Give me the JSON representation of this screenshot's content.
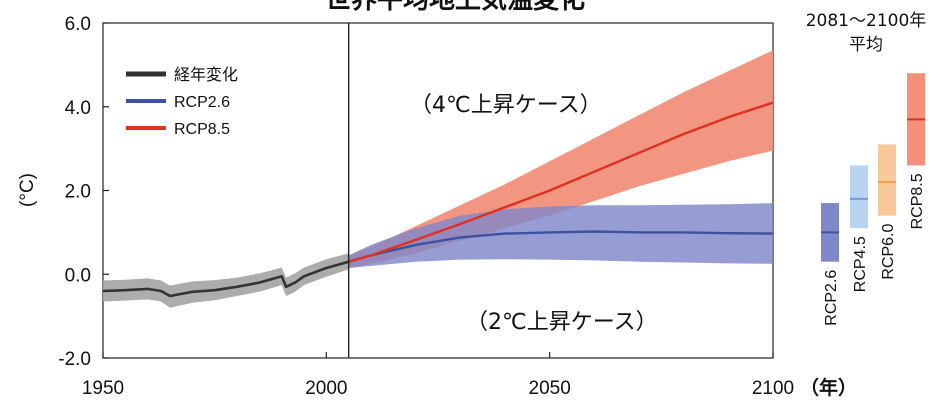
{
  "chart_data": {
    "type": "line",
    "title": "世界平均地上気温変化",
    "ylabel": "(°C)",
    "xunit": "（年）",
    "xlim": [
      1950,
      2100
    ],
    "ylim": [
      -2.0,
      6.0
    ],
    "x_ticks": [
      "1950",
      "2000",
      "2050",
      "2100"
    ],
    "y_ticks": [
      "6.0",
      "4.0",
      "2.0",
      "0.0",
      "-2.0"
    ],
    "split_year": 2005,
    "annotations": {
      "high": "（4℃上昇ケース）",
      "low": "（2℃上昇ケース）"
    },
    "colors": {
      "historical": "#333333",
      "historical_band": "#a8a8a8",
      "rcp26": "#3b52a0",
      "rcp26_band": "#8088c8",
      "rcp85": "#e03020",
      "rcp85_band": "#f2907a",
      "rcp45": "#6d9fd8",
      "rcp45_band": "#b8d4f0",
      "rcp60": "#f0a050",
      "rcp60_band": "#f8c898"
    },
    "series": [
      {
        "name": "経年変化",
        "key": "historical",
        "x": [
          1950,
          1955,
          1960,
          1963,
          1965,
          1970,
          1975,
          1980,
          1985,
          1990,
          1991,
          1993,
          1995,
          2000,
          2005
        ],
        "y": [
          -0.4,
          -0.38,
          -0.35,
          -0.4,
          -0.52,
          -0.42,
          -0.38,
          -0.3,
          -0.2,
          -0.05,
          -0.3,
          -0.2,
          -0.05,
          0.15,
          0.3
        ],
        "band_low": [
          -0.65,
          -0.63,
          -0.6,
          -0.65,
          -0.8,
          -0.68,
          -0.62,
          -0.52,
          -0.42,
          -0.26,
          -0.52,
          -0.42,
          -0.26,
          -0.06,
          0.12
        ],
        "band_high": [
          -0.15,
          -0.13,
          -0.1,
          -0.15,
          -0.27,
          -0.17,
          -0.14,
          -0.08,
          0.02,
          0.16,
          -0.08,
          0.02,
          0.16,
          0.36,
          0.5
        ]
      },
      {
        "name": "RCP2.6",
        "key": "rcp26",
        "x": [
          2005,
          2010,
          2020,
          2030,
          2040,
          2050,
          2060,
          2070,
          2080,
          2090,
          2100
        ],
        "y": [
          0.3,
          0.45,
          0.7,
          0.88,
          0.97,
          1.0,
          1.02,
          1.0,
          1.0,
          0.98,
          0.97
        ],
        "band_low": [
          0.15,
          0.2,
          0.3,
          0.35,
          0.36,
          0.35,
          0.33,
          0.3,
          0.28,
          0.26,
          0.25
        ],
        "band_high": [
          0.45,
          0.7,
          1.1,
          1.4,
          1.55,
          1.62,
          1.65,
          1.65,
          1.66,
          1.67,
          1.7
        ]
      },
      {
        "name": "RCP8.5",
        "key": "rcp85",
        "x": [
          2005,
          2010,
          2020,
          2030,
          2040,
          2050,
          2060,
          2070,
          2080,
          2090,
          2100
        ],
        "y": [
          0.3,
          0.45,
          0.82,
          1.2,
          1.6,
          2.0,
          2.45,
          2.9,
          3.35,
          3.75,
          4.1
        ],
        "band_low": [
          0.15,
          0.25,
          0.5,
          0.8,
          1.1,
          1.4,
          1.75,
          2.1,
          2.4,
          2.7,
          2.95
        ],
        "band_high": [
          0.45,
          0.65,
          1.15,
          1.65,
          2.15,
          2.7,
          3.25,
          3.8,
          4.35,
          4.85,
          5.35
        ]
      }
    ],
    "legend": [
      {
        "label": "経年変化",
        "key": "historical"
      },
      {
        "label": "RCP2.6",
        "key": "rcp26"
      },
      {
        "label": "RCP8.5",
        "key": "rcp85"
      }
    ],
    "side_panel": {
      "title_line1": "2081～2100年",
      "title_line2": "平均",
      "boxes": [
        {
          "label": "RCP2.6",
          "key": "rcp26",
          "low": 0.3,
          "high": 1.7,
          "mean": 1.0
        },
        {
          "label": "RCP4.5",
          "key": "rcp45",
          "low": 1.1,
          "high": 2.6,
          "mean": 1.8
        },
        {
          "label": "RCP6.0",
          "key": "rcp60",
          "low": 1.4,
          "high": 3.1,
          "mean": 2.2
        },
        {
          "label": "RCP8.5",
          "key": "rcp85",
          "low": 2.6,
          "high": 4.8,
          "mean": 3.7
        }
      ]
    }
  }
}
